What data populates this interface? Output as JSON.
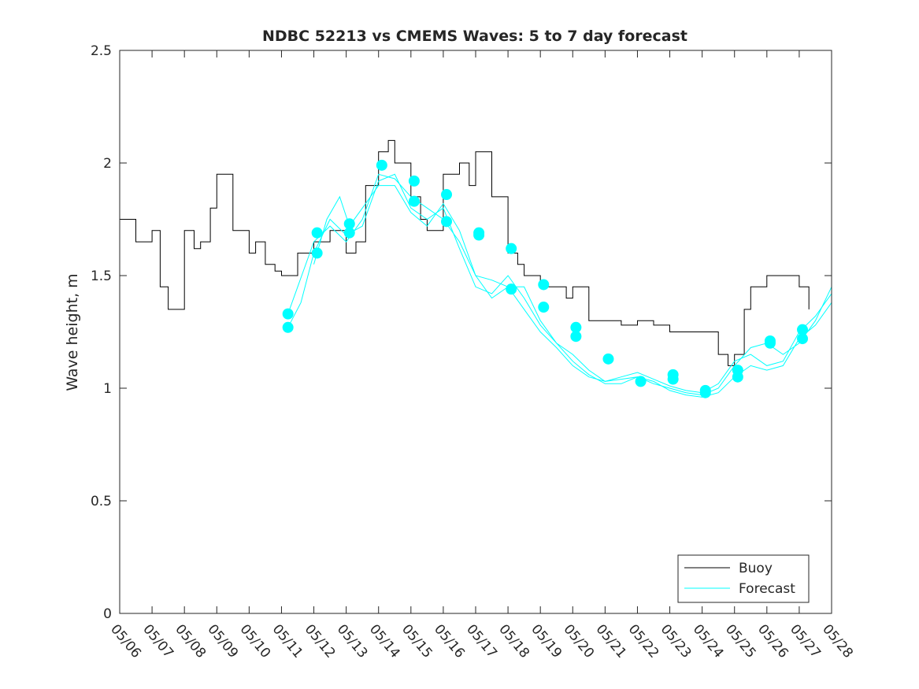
{
  "chart_data": {
    "type": "line",
    "title": "NDBC 52213 vs CMEMS Waves: 5 to 7 day forecast",
    "xlabel": "",
    "ylabel": "Wave height, m",
    "xlim": [
      0,
      22
    ],
    "ylim": [
      0,
      2.5
    ],
    "x_ticks": [
      "05/06",
      "05/07",
      "05/08",
      "05/09",
      "05/10",
      "05/11",
      "05/12",
      "05/13",
      "05/14",
      "05/15",
      "05/16",
      "05/17",
      "05/18",
      "05/19",
      "05/20",
      "05/21",
      "05/22",
      "05/23",
      "05/24",
      "05/25",
      "05/26",
      "05/27",
      "05/28"
    ],
    "y_ticks": [
      "0",
      "0.5",
      "1",
      "1.5",
      "2",
      "2.5"
    ],
    "legend": {
      "placement": "bottom-right",
      "entries": [
        "Buoy",
        "Forecast"
      ]
    },
    "colors": {
      "buoy": "#000000",
      "forecast": "#00ffff",
      "axis": "#262626"
    },
    "series": [
      {
        "name": "Buoy",
        "type": "line",
        "x": [
          0.0,
          0.5,
          1.0,
          1.25,
          1.5,
          2.0,
          2.3,
          2.5,
          2.8,
          3.0,
          3.5,
          4.0,
          4.2,
          4.5,
          4.8,
          5.0,
          5.5,
          6.0,
          6.5,
          6.8,
          7.0,
          7.3,
          7.6,
          8.0,
          8.3,
          8.5,
          9.0,
          9.3,
          9.5,
          10.0,
          10.5,
          10.8,
          11.0,
          11.5,
          12.0,
          12.3,
          12.5,
          13.0,
          13.5,
          13.8,
          14.0,
          14.5,
          15.0,
          15.5,
          16.0,
          16.5,
          17.0,
          17.5,
          18.0,
          18.5,
          18.8,
          19.0,
          19.3,
          19.5,
          20.0,
          20.5,
          21.0,
          21.3
        ],
        "y": [
          1.75,
          1.65,
          1.7,
          1.45,
          1.35,
          1.7,
          1.62,
          1.65,
          1.8,
          1.95,
          1.7,
          1.6,
          1.65,
          1.55,
          1.52,
          1.5,
          1.6,
          1.65,
          1.7,
          1.7,
          1.6,
          1.65,
          1.9,
          2.05,
          2.1,
          2.0,
          1.85,
          1.75,
          1.7,
          1.95,
          2.0,
          1.9,
          2.05,
          1.85,
          1.6,
          1.55,
          1.5,
          1.45,
          1.45,
          1.4,
          1.45,
          1.3,
          1.3,
          1.28,
          1.3,
          1.28,
          1.25,
          1.25,
          1.25,
          1.15,
          1.1,
          1.15,
          1.35,
          1.45,
          1.5,
          1.5,
          1.45,
          1.35
        ]
      },
      {
        "name": "Forecast",
        "type": "line",
        "x": [
          5.2,
          5.5,
          6.0,
          6.5,
          7.0,
          7.5,
          8.0,
          8.5,
          9.0,
          9.5,
          10.0,
          10.5,
          11.0,
          11.5,
          12.0,
          12.5,
          13.0,
          13.5,
          14.0,
          14.5,
          15.0,
          15.5,
          16.0,
          16.5,
          17.0,
          17.5,
          18.0,
          18.5,
          19.0,
          19.5,
          20.0,
          20.5,
          21.0,
          21.5,
          22.0
        ],
        "y": [
          1.33,
          1.45,
          1.65,
          1.72,
          1.65,
          1.75,
          1.95,
          1.93,
          1.85,
          1.8,
          1.75,
          1.65,
          1.5,
          1.4,
          1.45,
          1.35,
          1.25,
          1.18,
          1.1,
          1.05,
          1.03,
          1.04,
          1.05,
          1.02,
          1.0,
          0.98,
          0.97,
          1.0,
          1.1,
          1.18,
          1.2,
          1.15,
          1.2,
          1.3,
          1.45
        ]
      },
      {
        "name": "Forecast",
        "type": "line",
        "x": [
          5.2,
          5.6,
          6.0,
          6.5,
          7.0,
          7.5,
          8.0,
          8.5,
          9.0,
          9.5,
          10.0,
          10.5,
          11.0,
          11.5,
          12.0,
          12.5,
          13.0,
          13.5,
          14.0,
          14.5,
          15.0,
          15.5,
          16.0,
          16.5,
          17.0,
          17.5,
          18.0,
          18.5,
          19.0,
          19.5,
          20.0,
          20.5,
          21.0,
          21.5,
          22.0
        ],
        "y": [
          1.27,
          1.38,
          1.6,
          1.75,
          1.68,
          1.72,
          1.92,
          1.95,
          1.8,
          1.75,
          1.8,
          1.62,
          1.45,
          1.42,
          1.5,
          1.4,
          1.28,
          1.2,
          1.12,
          1.06,
          1.02,
          1.02,
          1.05,
          1.03,
          0.99,
          0.97,
          0.96,
          0.98,
          1.05,
          1.1,
          1.08,
          1.1,
          1.22,
          1.28,
          1.38
        ]
      },
      {
        "name": "Forecast",
        "type": "line",
        "x": [
          6.0,
          6.4,
          6.8,
          7.1,
          7.5,
          8.0,
          8.5,
          9.0,
          9.5,
          10.0,
          10.5,
          11.0,
          11.5,
          12.0,
          12.5,
          13.0,
          13.5,
          14.0,
          14.5,
          15.0,
          15.5,
          16.0,
          16.5,
          17.0,
          17.5,
          18.0,
          18.5,
          19.0,
          19.5,
          20.0,
          20.5,
          21.0,
          21.5,
          22.0
        ],
        "y": [
          1.55,
          1.75,
          1.85,
          1.72,
          1.8,
          1.9,
          1.9,
          1.78,
          1.72,
          1.82,
          1.7,
          1.5,
          1.48,
          1.45,
          1.45,
          1.3,
          1.2,
          1.15,
          1.08,
          1.03,
          1.05,
          1.07,
          1.04,
          1.01,
          0.99,
          0.98,
          1.02,
          1.12,
          1.15,
          1.1,
          1.12,
          1.25,
          1.32,
          1.42
        ]
      }
    ],
    "forecast_points": {
      "x": [
        5.2,
        5.2,
        6.1,
        6.1,
        7.1,
        7.1,
        8.1,
        9.1,
        9.1,
        10.1,
        10.1,
        11.1,
        11.1,
        12.1,
        12.1,
        13.1,
        13.1,
        14.1,
        14.1,
        15.1,
        16.1,
        17.1,
        17.1,
        18.1,
        18.1,
        19.1,
        19.1,
        20.1,
        20.1,
        21.1,
        21.1
      ],
      "y": [
        1.33,
        1.27,
        1.69,
        1.6,
        1.73,
        1.69,
        1.99,
        1.92,
        1.83,
        1.86,
        1.74,
        1.69,
        1.68,
        1.62,
        1.44,
        1.46,
        1.36,
        1.27,
        1.23,
        1.13,
        1.03,
        1.06,
        1.04,
        0.99,
        0.98,
        1.08,
        1.05,
        1.21,
        1.2,
        1.26,
        1.22
      ]
    }
  }
}
